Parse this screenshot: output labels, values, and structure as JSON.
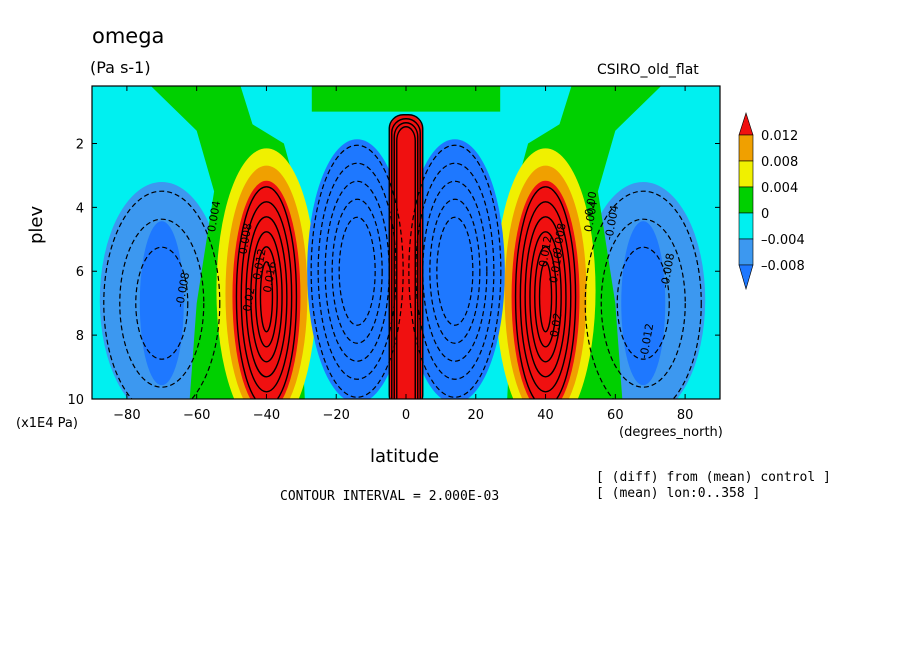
{
  "header": {
    "title": "omega",
    "units": "(Pa s-1)",
    "model": "CSIRO_old_flat"
  },
  "footer": {
    "contour_interval": "CONTOUR INTERVAL = 2.000E-03",
    "note_diff": "[ (diff) from (mean) control ]",
    "note_mean": "[ (mean) lon:0..358 ]"
  },
  "colors": {
    "lt_-0.008": "#1e78ff",
    "-0.008_-0.004": "#3c98f0",
    "-0.004_0": "#00f0f0",
    "0_0.004": "#00d000",
    "0.004_0.008": "#f0f000",
    "0.008_0.012": "#f0a000",
    "gt_0.012": "#f01010"
  },
  "chart_data": {
    "type": "heatmap",
    "variable": "omega",
    "units": "(Pa s-1)",
    "xlabel": "latitude",
    "ylabel": "plev",
    "x_units_label": "(degrees_north)",
    "y_units_label": "(x1E4 Pa)",
    "xlim": [
      -90,
      90
    ],
    "ylim": [
      10,
      0.2
    ],
    "x_ticks": [
      -80,
      -60,
      -40,
      -20,
      0,
      20,
      40,
      60,
      80
    ],
    "y_ticks": [
      2,
      4,
      6,
      8,
      10
    ],
    "colorbar": {
      "levels": [
        -0.008,
        -0.004,
        0,
        0.004,
        0.008,
        0.012
      ],
      "labels": [
        "0.012",
        "0.008",
        "0.004",
        "0",
        "–0.004",
        "–0.008"
      ]
    },
    "features": [
      {
        "lat_center": 0,
        "plev_center": 6.5,
        "value_sign": "positive",
        "peak": ">0.012"
      },
      {
        "lat_center": -12,
        "plev_center": 6.0,
        "value_sign": "negative",
        "peak": "<-0.008"
      },
      {
        "lat_center": 12,
        "plev_center": 6.0,
        "value_sign": "negative",
        "peak": "<-0.008"
      },
      {
        "lat_center": -40,
        "plev_center": 6.8,
        "value_sign": "positive",
        "peak": ">0.012"
      },
      {
        "lat_center": 40,
        "plev_center": 6.8,
        "value_sign": "positive",
        "peak": ">0.012"
      },
      {
        "lat_center": -70,
        "plev_center": 7.0,
        "value_sign": "negative",
        "peak": "<-0.008"
      },
      {
        "lat_center": 68,
        "plev_center": 7.0,
        "value_sign": "negative",
        "peak": "<-0.008"
      }
    ],
    "contour_labels": [
      "0.004",
      "0.008",
      "0.012",
      "0.016",
      "0.02",
      "-0.004",
      "-0.008",
      "-0.012",
      "0",
      "0.00"
    ],
    "contour_interval": 0.002
  }
}
